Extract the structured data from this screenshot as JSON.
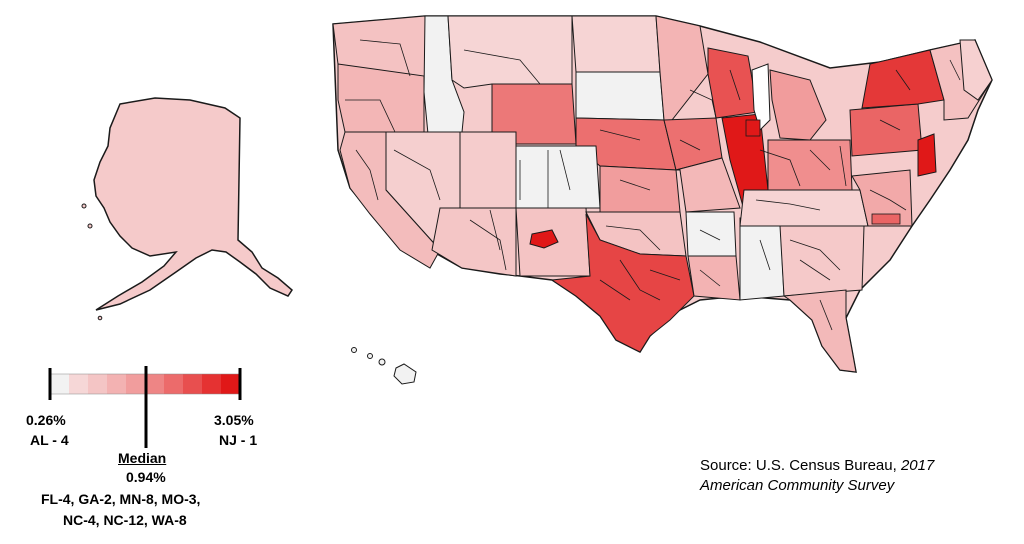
{
  "legend": {
    "min": {
      "value": "0.26%",
      "district": "AL - 4"
    },
    "max": {
      "value": "3.05%",
      "district": "NJ - 1"
    },
    "median": {
      "title": "Median",
      "value": "0.94%",
      "districts_line1": "FL-4, GA-2, MN-8, MO-3,",
      "districts_line2": "NC-4, NC-12, WA-8"
    },
    "scale_colors": [
      "#f2f2f2",
      "#f6d7d7",
      "#f4c5c5",
      "#f3b2b2",
      "#f19d9d",
      "#ee8585",
      "#ec6b6b",
      "#e84f4f",
      "#e53232",
      "#e01818"
    ]
  },
  "source": {
    "prefix": "Source:  U.S. Census Bureau, ",
    "italic_1": "2017",
    "italic_2": "American Community Survey"
  },
  "colors": {
    "border": "#1a1a1a",
    "lightest": "#f2f2f2",
    "light": "#f6d2d2",
    "medium": "#f1a9a9",
    "strong": "#ea7373",
    "darkest": "#e01818"
  }
}
